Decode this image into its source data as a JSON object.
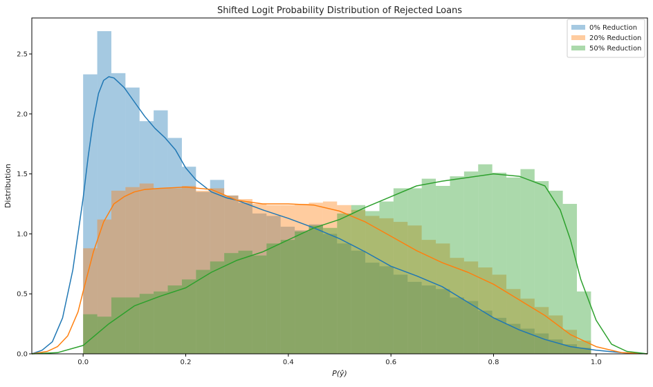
{
  "chart_data": {
    "type": "histogram",
    "title": "Shifted Logit Probability Distribution of Rejected Loans",
    "xlabel": "P(ŷ)",
    "ylabel": "Distribution",
    "xlim": [
      -0.1,
      1.1
    ],
    "ylim": [
      0,
      2.8
    ],
    "xticks": [
      "0.0",
      "0.2",
      "0.4",
      "0.6",
      "0.8",
      "1.0"
    ],
    "yticks": [
      "0.0",
      "0.5",
      "1.0",
      "1.5",
      "2.0",
      "2.5"
    ],
    "legend_position": "top-right",
    "bin_edges": [
      0.0,
      0.0275,
      0.055,
      0.0825,
      0.11,
      0.1375,
      0.165,
      0.1925,
      0.22,
      0.2475,
      0.275,
      0.3025,
      0.33,
      0.3575,
      0.385,
      0.4125,
      0.44,
      0.4675,
      0.495,
      0.5225,
      0.55,
      0.5775,
      0.605,
      0.6325,
      0.66,
      0.6875,
      0.715,
      0.7425,
      0.77,
      0.7975,
      0.825,
      0.8525,
      0.88,
      0.9075,
      0.935,
      0.9625,
      0.99
    ],
    "series": [
      {
        "name": "0% Reduction",
        "color": "#1f77b4",
        "hist": [
          2.33,
          2.69,
          2.34,
          2.22,
          1.94,
          2.03,
          1.8,
          1.56,
          1.35,
          1.45,
          1.32,
          1.26,
          1.17,
          1.15,
          1.06,
          1.03,
          1.08,
          1.0,
          0.92,
          0.86,
          0.76,
          0.73,
          0.66,
          0.6,
          0.57,
          0.54,
          0.47,
          0.44,
          0.36,
          0.3,
          0.25,
          0.21,
          0.17,
          0.12,
          0.08,
          0.05
        ],
        "kde_x": [
          -0.1,
          -0.08,
          -0.06,
          -0.04,
          -0.02,
          0.0,
          0.01,
          0.02,
          0.03,
          0.04,
          0.05,
          0.06,
          0.08,
          0.1,
          0.12,
          0.14,
          0.16,
          0.18,
          0.2,
          0.22,
          0.25,
          0.28,
          0.3,
          0.35,
          0.4,
          0.45,
          0.5,
          0.55,
          0.6,
          0.65,
          0.7,
          0.75,
          0.8,
          0.85,
          0.9,
          0.95,
          1.0,
          1.05,
          1.1
        ],
        "kde_y": [
          0.0,
          0.03,
          0.1,
          0.3,
          0.7,
          1.3,
          1.65,
          1.95,
          2.17,
          2.28,
          2.31,
          2.3,
          2.22,
          2.1,
          1.98,
          1.88,
          1.8,
          1.7,
          1.55,
          1.45,
          1.35,
          1.3,
          1.28,
          1.2,
          1.13,
          1.05,
          0.96,
          0.85,
          0.73,
          0.65,
          0.56,
          0.43,
          0.3,
          0.2,
          0.12,
          0.06,
          0.03,
          0.01,
          0.0
        ]
      },
      {
        "name": "20% Reduction",
        "color": "#ff7f0e",
        "hist": [
          0.88,
          1.12,
          1.36,
          1.39,
          1.42,
          1.38,
          1.38,
          1.4,
          1.36,
          1.38,
          1.32,
          1.29,
          1.25,
          1.24,
          1.24,
          1.25,
          1.26,
          1.27,
          1.24,
          1.2,
          1.15,
          1.13,
          1.1,
          1.07,
          0.95,
          0.92,
          0.8,
          0.77,
          0.72,
          0.66,
          0.54,
          0.46,
          0.39,
          0.32,
          0.2,
          0.11
        ],
        "kde_x": [
          -0.1,
          -0.07,
          -0.05,
          -0.03,
          -0.01,
          0.0,
          0.02,
          0.04,
          0.06,
          0.08,
          0.1,
          0.12,
          0.15,
          0.2,
          0.25,
          0.3,
          0.35,
          0.4,
          0.45,
          0.5,
          0.55,
          0.6,
          0.65,
          0.7,
          0.75,
          0.8,
          0.85,
          0.9,
          0.95,
          1.0,
          1.05,
          1.1
        ],
        "kde_y": [
          0.0,
          0.02,
          0.06,
          0.15,
          0.35,
          0.52,
          0.85,
          1.1,
          1.25,
          1.31,
          1.35,
          1.37,
          1.38,
          1.39,
          1.37,
          1.28,
          1.25,
          1.25,
          1.24,
          1.19,
          1.1,
          0.98,
          0.86,
          0.76,
          0.68,
          0.58,
          0.45,
          0.32,
          0.16,
          0.06,
          0.01,
          0.0
        ]
      },
      {
        "name": "50% Reduction",
        "color": "#2ca02c",
        "hist": [
          0.33,
          0.31,
          0.47,
          0.47,
          0.5,
          0.52,
          0.57,
          0.62,
          0.7,
          0.77,
          0.84,
          0.86,
          0.82,
          0.92,
          0.95,
          1.02,
          1.07,
          1.05,
          1.17,
          1.24,
          1.19,
          1.27,
          1.38,
          1.38,
          1.46,
          1.4,
          1.48,
          1.52,
          1.58,
          1.51,
          1.47,
          1.54,
          1.44,
          1.36,
          1.25,
          0.52
        ],
        "kde_x": [
          -0.1,
          -0.05,
          0.0,
          0.05,
          0.1,
          0.15,
          0.2,
          0.25,
          0.3,
          0.35,
          0.4,
          0.45,
          0.5,
          0.55,
          0.6,
          0.65,
          0.7,
          0.75,
          0.8,
          0.85,
          0.9,
          0.93,
          0.95,
          0.97,
          1.0,
          1.03,
          1.06,
          1.1
        ],
        "kde_y": [
          0.0,
          0.01,
          0.07,
          0.25,
          0.4,
          0.48,
          0.55,
          0.68,
          0.78,
          0.85,
          0.95,
          1.05,
          1.12,
          1.22,
          1.31,
          1.4,
          1.44,
          1.47,
          1.5,
          1.48,
          1.4,
          1.2,
          0.95,
          0.62,
          0.28,
          0.08,
          0.02,
          0.0
        ]
      }
    ]
  }
}
